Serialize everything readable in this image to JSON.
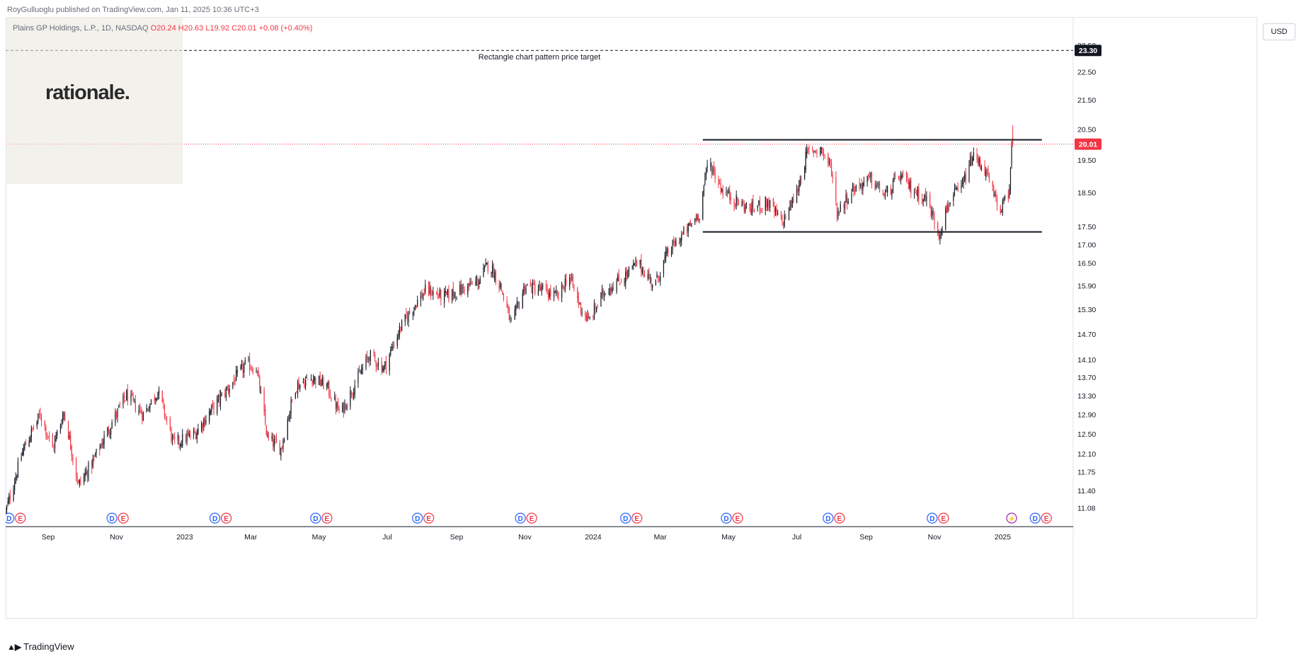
{
  "header": {
    "published": "RoyGulluoglu published on TradingView.com, Jan 11, 2025 10:36 UTC+3"
  },
  "legend": {
    "symbol": "Plains GP Holdings, L.P., 1D, NASDAQ",
    "open": "O20.24",
    "high": "H20.63",
    "low": "L19.92",
    "close": "C20.01",
    "change": "+0.08 (+0.40%)"
  },
  "logo_text": "rationale.",
  "currency": "USD",
  "footer": {
    "brand": "TradingView"
  },
  "colors": {
    "up": "#131722",
    "down": "#f23645",
    "price_line": "#f23645",
    "target_line": "#131722"
  },
  "icons": [
    "dividend-icon",
    "earnings-icon",
    "lightning-icon",
    "tradingview-logo-icon"
  ],
  "chart_data": {
    "type": "candlestick",
    "title": "Plains GP Holdings, L.P., 1D, NASDAQ",
    "y_scale": "log",
    "ylim": [
      10.75,
      24.6
    ],
    "xlim": [
      "2022-07-25",
      "2025-03-05"
    ],
    "y_ticks": [
      "23.50",
      "22.50",
      "21.50",
      "20.50",
      "19.50",
      "18.50",
      "17.50",
      "17.00",
      "16.50",
      "15.90",
      "15.30",
      "14.70",
      "14.10",
      "13.70",
      "13.30",
      "12.90",
      "12.50",
      "12.10",
      "11.75",
      "11.40",
      "11.08"
    ],
    "x_ticks": [
      {
        "label": "Sep",
        "date": "2022-09-01"
      },
      {
        "label": "Nov",
        "date": "2022-11-01"
      },
      {
        "label": "2023",
        "date": "2023-01-01"
      },
      {
        "label": "Mar",
        "date": "2023-03-01"
      },
      {
        "label": "May",
        "date": "2023-05-01"
      },
      {
        "label": "Jul",
        "date": "2023-07-01"
      },
      {
        "label": "Sep",
        "date": "2023-09-01"
      },
      {
        "label": "Nov",
        "date": "2023-11-01"
      },
      {
        "label": "2024",
        "date": "2024-01-01"
      },
      {
        "label": "Mar",
        "date": "2024-03-01"
      },
      {
        "label": "May",
        "date": "2024-05-01"
      },
      {
        "label": "Jul",
        "date": "2024-07-01"
      },
      {
        "label": "Sep",
        "date": "2024-09-01"
      },
      {
        "label": "Nov",
        "date": "2024-11-01"
      },
      {
        "label": "2025",
        "date": "2025-01-01"
      }
    ],
    "price_path": [
      [
        "2022-07-25",
        11.0
      ],
      [
        "2022-08-10",
        12.2
      ],
      [
        "2022-08-25",
        12.9
      ],
      [
        "2022-09-05",
        12.2
      ],
      [
        "2022-09-15",
        12.95
      ],
      [
        "2022-09-28",
        11.5
      ],
      [
        "2022-10-10",
        11.9
      ],
      [
        "2022-10-25",
        12.6
      ],
      [
        "2022-11-10",
        13.3
      ],
      [
        "2022-11-25",
        12.9
      ],
      [
        "2022-12-08",
        13.4
      ],
      [
        "2022-12-22",
        12.3
      ],
      [
        "2023-01-10",
        12.5
      ],
      [
        "2023-01-25",
        13.0
      ],
      [
        "2023-02-10",
        13.5
      ],
      [
        "2023-02-25",
        14.0
      ],
      [
        "2023-03-06",
        13.9
      ],
      [
        "2023-03-16",
        12.4
      ],
      [
        "2023-03-28",
        12.2
      ],
      [
        "2023-04-10",
        13.5
      ],
      [
        "2023-04-25",
        13.7
      ],
      [
        "2023-05-08",
        13.5
      ],
      [
        "2023-05-20",
        12.9
      ],
      [
        "2023-06-01",
        13.5
      ],
      [
        "2023-06-15",
        14.2
      ],
      [
        "2023-06-28",
        13.9
      ],
      [
        "2023-07-12",
        14.8
      ],
      [
        "2023-07-25",
        15.4
      ],
      [
        "2023-08-05",
        15.8
      ],
      [
        "2023-08-20",
        15.6
      ],
      [
        "2023-09-05",
        15.8
      ],
      [
        "2023-09-20",
        16.0
      ],
      [
        "2023-09-30",
        16.5
      ],
      [
        "2023-10-10",
        15.9
      ],
      [
        "2023-10-20",
        14.9
      ],
      [
        "2023-11-01",
        15.9
      ],
      [
        "2023-11-15",
        15.8
      ],
      [
        "2023-12-01",
        15.6
      ],
      [
        "2023-12-10",
        16.2
      ],
      [
        "2023-12-20",
        15.4
      ],
      [
        "2023-12-28",
        15.0
      ],
      [
        "2024-01-12",
        15.8
      ],
      [
        "2024-01-28",
        16.1
      ],
      [
        "2024-02-10",
        16.5
      ],
      [
        "2024-02-25",
        15.9
      ],
      [
        "2024-03-08",
        16.8
      ],
      [
        "2024-03-25",
        17.4
      ],
      [
        "2024-04-05",
        17.9
      ],
      [
        "2024-04-13",
        19.5
      ],
      [
        "2024-04-25",
        18.6
      ],
      [
        "2024-05-05",
        18.3
      ],
      [
        "2024-05-20",
        18.0
      ],
      [
        "2024-06-05",
        18.2
      ],
      [
        "2024-06-18",
        17.6
      ],
      [
        "2024-07-01",
        18.5
      ],
      [
        "2024-07-10",
        19.7
      ],
      [
        "2024-07-22",
        19.9
      ],
      [
        "2024-08-01",
        19.2
      ],
      [
        "2024-08-06",
        17.9
      ],
      [
        "2024-08-20",
        18.6
      ],
      [
        "2024-09-05",
        18.9
      ],
      [
        "2024-09-18",
        18.4
      ],
      [
        "2024-10-01",
        19.0
      ],
      [
        "2024-10-12",
        18.6
      ],
      [
        "2024-10-25",
        18.3
      ],
      [
        "2024-11-05",
        17.3
      ],
      [
        "2024-11-15",
        18.3
      ],
      [
        "2024-11-25",
        18.6
      ],
      [
        "2024-12-05",
        19.6
      ],
      [
        "2024-12-15",
        19.3
      ],
      [
        "2024-12-28",
        18.0
      ],
      [
        "2025-01-06",
        18.3
      ],
      [
        "2025-01-09",
        19.8
      ],
      [
        "2025-01-10",
        20.01
      ]
    ],
    "horizontal_lines": [
      {
        "name": "Rectangle chart pattern price target",
        "value": 23.3,
        "style": "dashed",
        "label": "Rectangle chart pattern price target"
      },
      {
        "name": "rectangle-top",
        "value": 20.15,
        "from": "2024-04-08",
        "to": "2025-02-05"
      },
      {
        "name": "rectangle-bottom",
        "value": 17.35,
        "from": "2024-04-08",
        "to": "2025-02-05"
      }
    ],
    "price_badges": [
      {
        "label": "23.30",
        "value": 23.3,
        "bg": "#131722"
      },
      {
        "label": "20.01",
        "value": 20.01,
        "bg": "#f23645"
      }
    ],
    "events": [
      {
        "date": "2022-07-28",
        "kinds": [
          "D",
          "E"
        ]
      },
      {
        "date": "2022-10-28",
        "kinds": [
          "D",
          "E"
        ]
      },
      {
        "date": "2023-01-28",
        "kinds": [
          "D",
          "E"
        ]
      },
      {
        "date": "2023-04-28",
        "kinds": [
          "D",
          "E"
        ]
      },
      {
        "date": "2023-07-28",
        "kinds": [
          "D",
          "E"
        ]
      },
      {
        "date": "2023-10-28",
        "kinds": [
          "D",
          "E"
        ]
      },
      {
        "date": "2024-01-30",
        "kinds": [
          "D",
          "E"
        ]
      },
      {
        "date": "2024-04-29",
        "kinds": [
          "D",
          "E"
        ]
      },
      {
        "date": "2024-07-29",
        "kinds": [
          "D",
          "E"
        ]
      },
      {
        "date": "2024-10-30",
        "kinds": [
          "D",
          "E"
        ]
      },
      {
        "date": "2025-01-09",
        "kinds": [
          "lightning"
        ]
      },
      {
        "date": "2025-01-30",
        "kinds": [
          "D",
          "E"
        ]
      }
    ]
  }
}
